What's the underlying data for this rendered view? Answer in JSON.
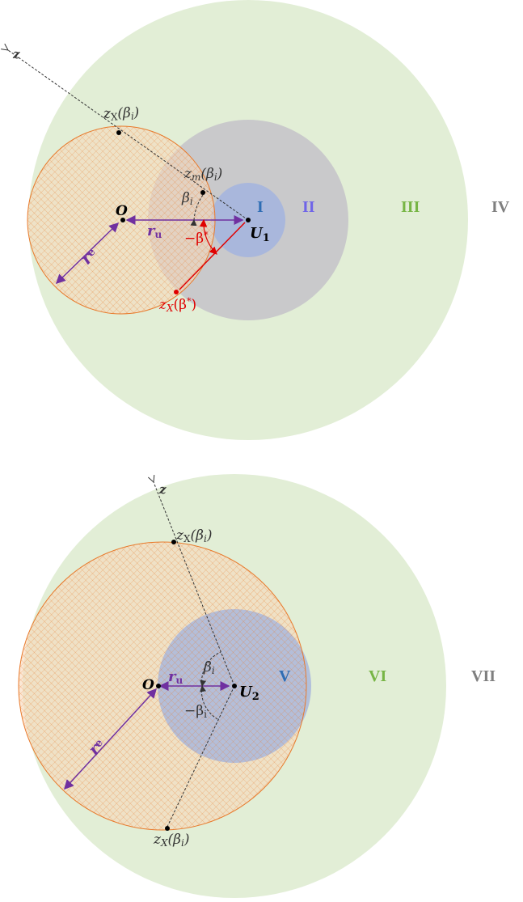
{
  "diagram_top": {
    "region_labels": {
      "I": "I",
      "II": "II",
      "III": "III",
      "IV": "IV"
    },
    "point_labels": {
      "O": "O",
      "U": "U",
      "U_sub": "1",
      "z": "z"
    },
    "radius_labels": {
      "re": "r",
      "re_sub": "e",
      "ru": "r",
      "ru_sub": "u"
    },
    "zx_label": {
      "main": "z",
      "sub": "X",
      "arg": "(β",
      "arg_sub": "i",
      "close": ")"
    },
    "zm_label": {
      "main": "z",
      "sub": "m",
      "arg": "(β",
      "arg_sub": "i",
      "close": ")"
    },
    "zstar_label": {
      "main": "z",
      "sub": "X",
      "arg": "(β",
      "arg_sup": "*",
      "close": ")"
    },
    "angle_beta_i": {
      "main": "β",
      "sub": "i"
    },
    "angle_beta_star": {
      "main": "−β",
      "sup": "*"
    }
  },
  "diagram_bottom": {
    "region_labels": {
      "V": "V",
      "VI": "VI",
      "VII": "VII"
    },
    "point_labels": {
      "O": "O",
      "U": "U",
      "U_sub": "2",
      "z": "z"
    },
    "radius_labels": {
      "re": "r",
      "re_sub": "e",
      "ru": "r",
      "ru_sub": "u"
    },
    "zx_top_label": {
      "main": "z",
      "sub": "X",
      "arg": "(β",
      "arg_sub": "i",
      "close": ")"
    },
    "zx_bottom_label": {
      "main": "z",
      "sub": "X",
      "arg": "(β",
      "arg_sub": "i",
      "close": ")"
    },
    "angle_beta_i": {
      "main": "β",
      "sub": "i"
    },
    "angle_minus_beta_i": {
      "main": "−β",
      "sub": "i"
    }
  },
  "colors": {
    "light_green": "#e2eed6",
    "gray": "#c9c9cb",
    "blue": "#a9b7dc",
    "orange_fill": "#f8d8bb",
    "orange_stroke": "#e87a2c",
    "purple": "#7030a0",
    "red": "#e00000",
    "roman_blue": "#2e6db4",
    "roman_purple": "#6f64e8",
    "roman_green": "#77b545",
    "roman_gray": "#7f7f7f"
  }
}
